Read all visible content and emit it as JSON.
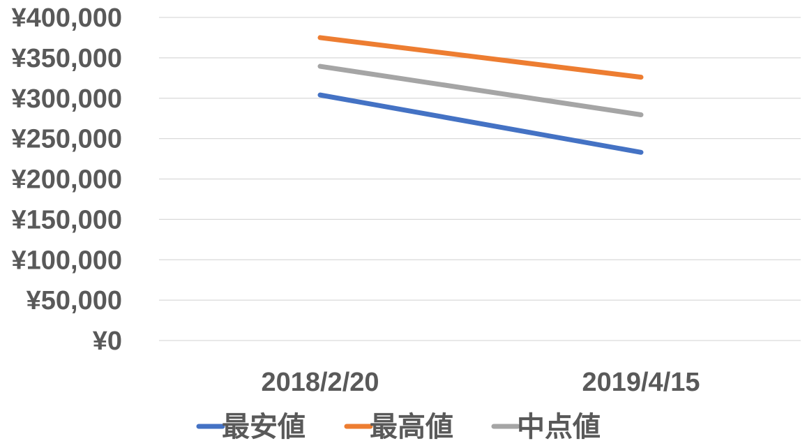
{
  "chart_data": {
    "type": "line",
    "categories": [
      "2018/2/20",
      "2019/4/15"
    ],
    "series": [
      {
        "name": "最安値",
        "values": [
          304000,
          233000
        ],
        "color": "#4472c4"
      },
      {
        "name": "最高値",
        "values": [
          375000,
          326000
        ],
        "color": "#ed7d31"
      },
      {
        "name": "中点値",
        "values": [
          339500,
          279500
        ],
        "color": "#a5a5a5"
      }
    ],
    "ylim": [
      0,
      400000
    ],
    "y_ticks": [
      {
        "value": 0,
        "label": "¥0"
      },
      {
        "value": 50000,
        "label": "¥50,000"
      },
      {
        "value": 100000,
        "label": "¥100,000"
      },
      {
        "value": 150000,
        "label": "¥150,000"
      },
      {
        "value": 200000,
        "label": "¥200,000"
      },
      {
        "value": 250000,
        "label": "¥250,000"
      },
      {
        "value": 300000,
        "label": "¥300,000"
      },
      {
        "value": 350000,
        "label": "¥350,000"
      },
      {
        "value": 400000,
        "label": "¥400,000"
      }
    ],
    "grid": true,
    "legend_position": "bottom",
    "title": "",
    "xlabel": "",
    "ylabel": ""
  }
}
